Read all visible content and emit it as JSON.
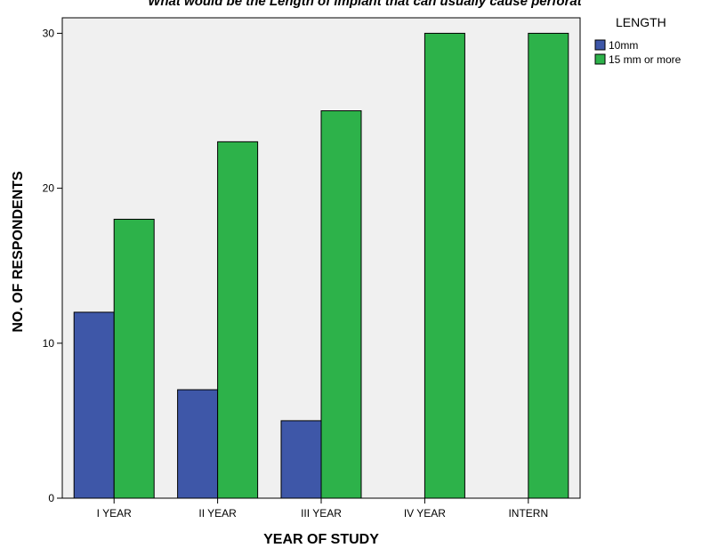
{
  "chart_data": {
    "type": "bar",
    "title": "What would be the Length of implant that can usually cause perforat",
    "xlabel": "YEAR OF STUDY",
    "ylabel": "NO. OF RESPONDENTS",
    "categories": [
      "I YEAR",
      "II YEAR",
      "III YEAR",
      "IV YEAR",
      "INTERN"
    ],
    "series": [
      {
        "name": "10mm",
        "color": "#3e57a8",
        "values": [
          12,
          7,
          5,
          0,
          0
        ]
      },
      {
        "name": "15 mm or more",
        "color": "#2db24a",
        "values": [
          18,
          23,
          25,
          30,
          30
        ]
      }
    ],
    "ylim": [
      0,
      30
    ],
    "yticks": [
      "0",
      "10",
      "20",
      "30"
    ],
    "legend": {
      "title": "LENGTH",
      "placement": "right"
    },
    "grid": false,
    "plot_background": "#f0f0f0"
  }
}
